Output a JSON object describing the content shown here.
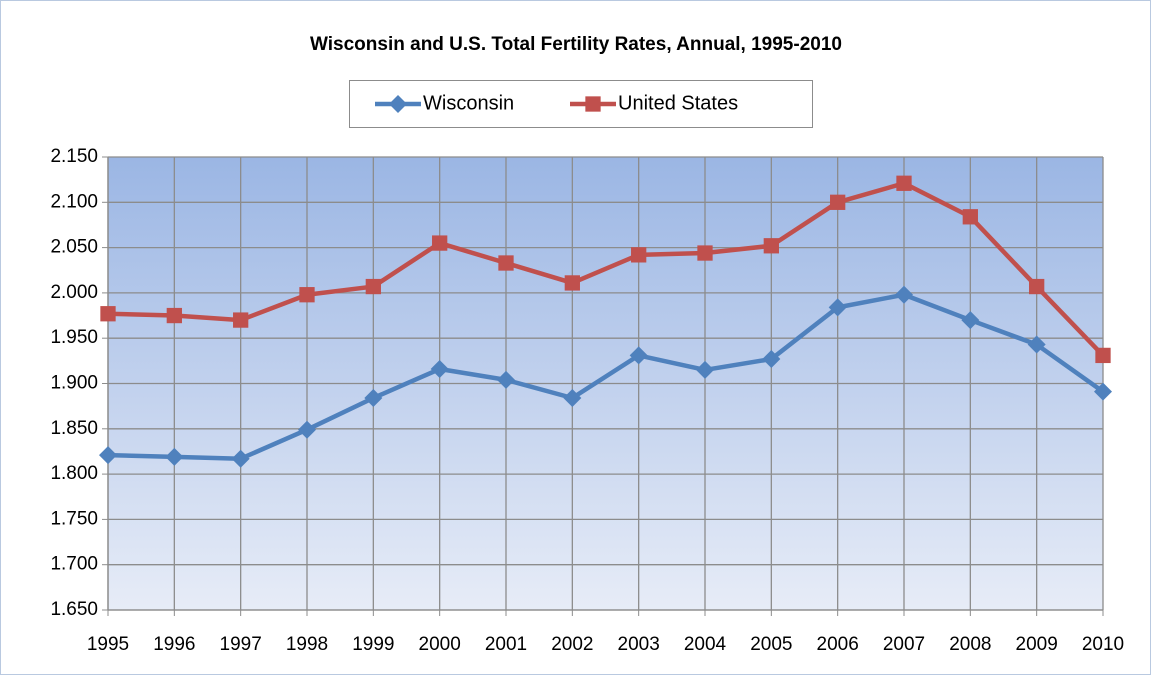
{
  "chart_data": {
    "type": "line",
    "title": "Wisconsin and U.S. Total Fertility Rates, Annual, 1995-2010",
    "categories": [
      "1995",
      "1996",
      "1997",
      "1998",
      "1999",
      "2000",
      "2001",
      "2002",
      "2003",
      "2004",
      "2005",
      "2006",
      "2007",
      "2008",
      "2009",
      "2010"
    ],
    "series": [
      {
        "name": "Wisconsin",
        "color": "#4f81bd",
        "marker": "diamond",
        "values": [
          1.821,
          1.819,
          1.817,
          1.849,
          1.884,
          1.916,
          1.904,
          1.884,
          1.931,
          1.915,
          1.927,
          1.984,
          1.998,
          1.97,
          1.943,
          1.891
        ]
      },
      {
        "name": "United States",
        "color": "#c0504d",
        "marker": "square",
        "values": [
          1.977,
          1.975,
          1.97,
          1.998,
          2.007,
          2.055,
          2.033,
          2.011,
          2.042,
          2.044,
          2.052,
          2.1,
          2.121,
          2.084,
          2.007,
          1.931
        ]
      }
    ],
    "ylim": [
      1.65,
      2.15
    ],
    "yticks": [
      {
        "value": 1.65,
        "label": "1.650"
      },
      {
        "value": 1.7,
        "label": "1.700"
      },
      {
        "value": 1.75,
        "label": "1.750"
      },
      {
        "value": 1.8,
        "label": "1.800"
      },
      {
        "value": 1.85,
        "label": "1.850"
      },
      {
        "value": 1.9,
        "label": "1.900"
      },
      {
        "value": 1.95,
        "label": "1.950"
      },
      {
        "value": 2.0,
        "label": "2.000"
      },
      {
        "value": 2.05,
        "label": "2.050"
      },
      {
        "value": 2.1,
        "label": "2.100"
      },
      {
        "value": 2.15,
        "label": "2.150"
      }
    ],
    "grid": true,
    "legend": "top"
  }
}
